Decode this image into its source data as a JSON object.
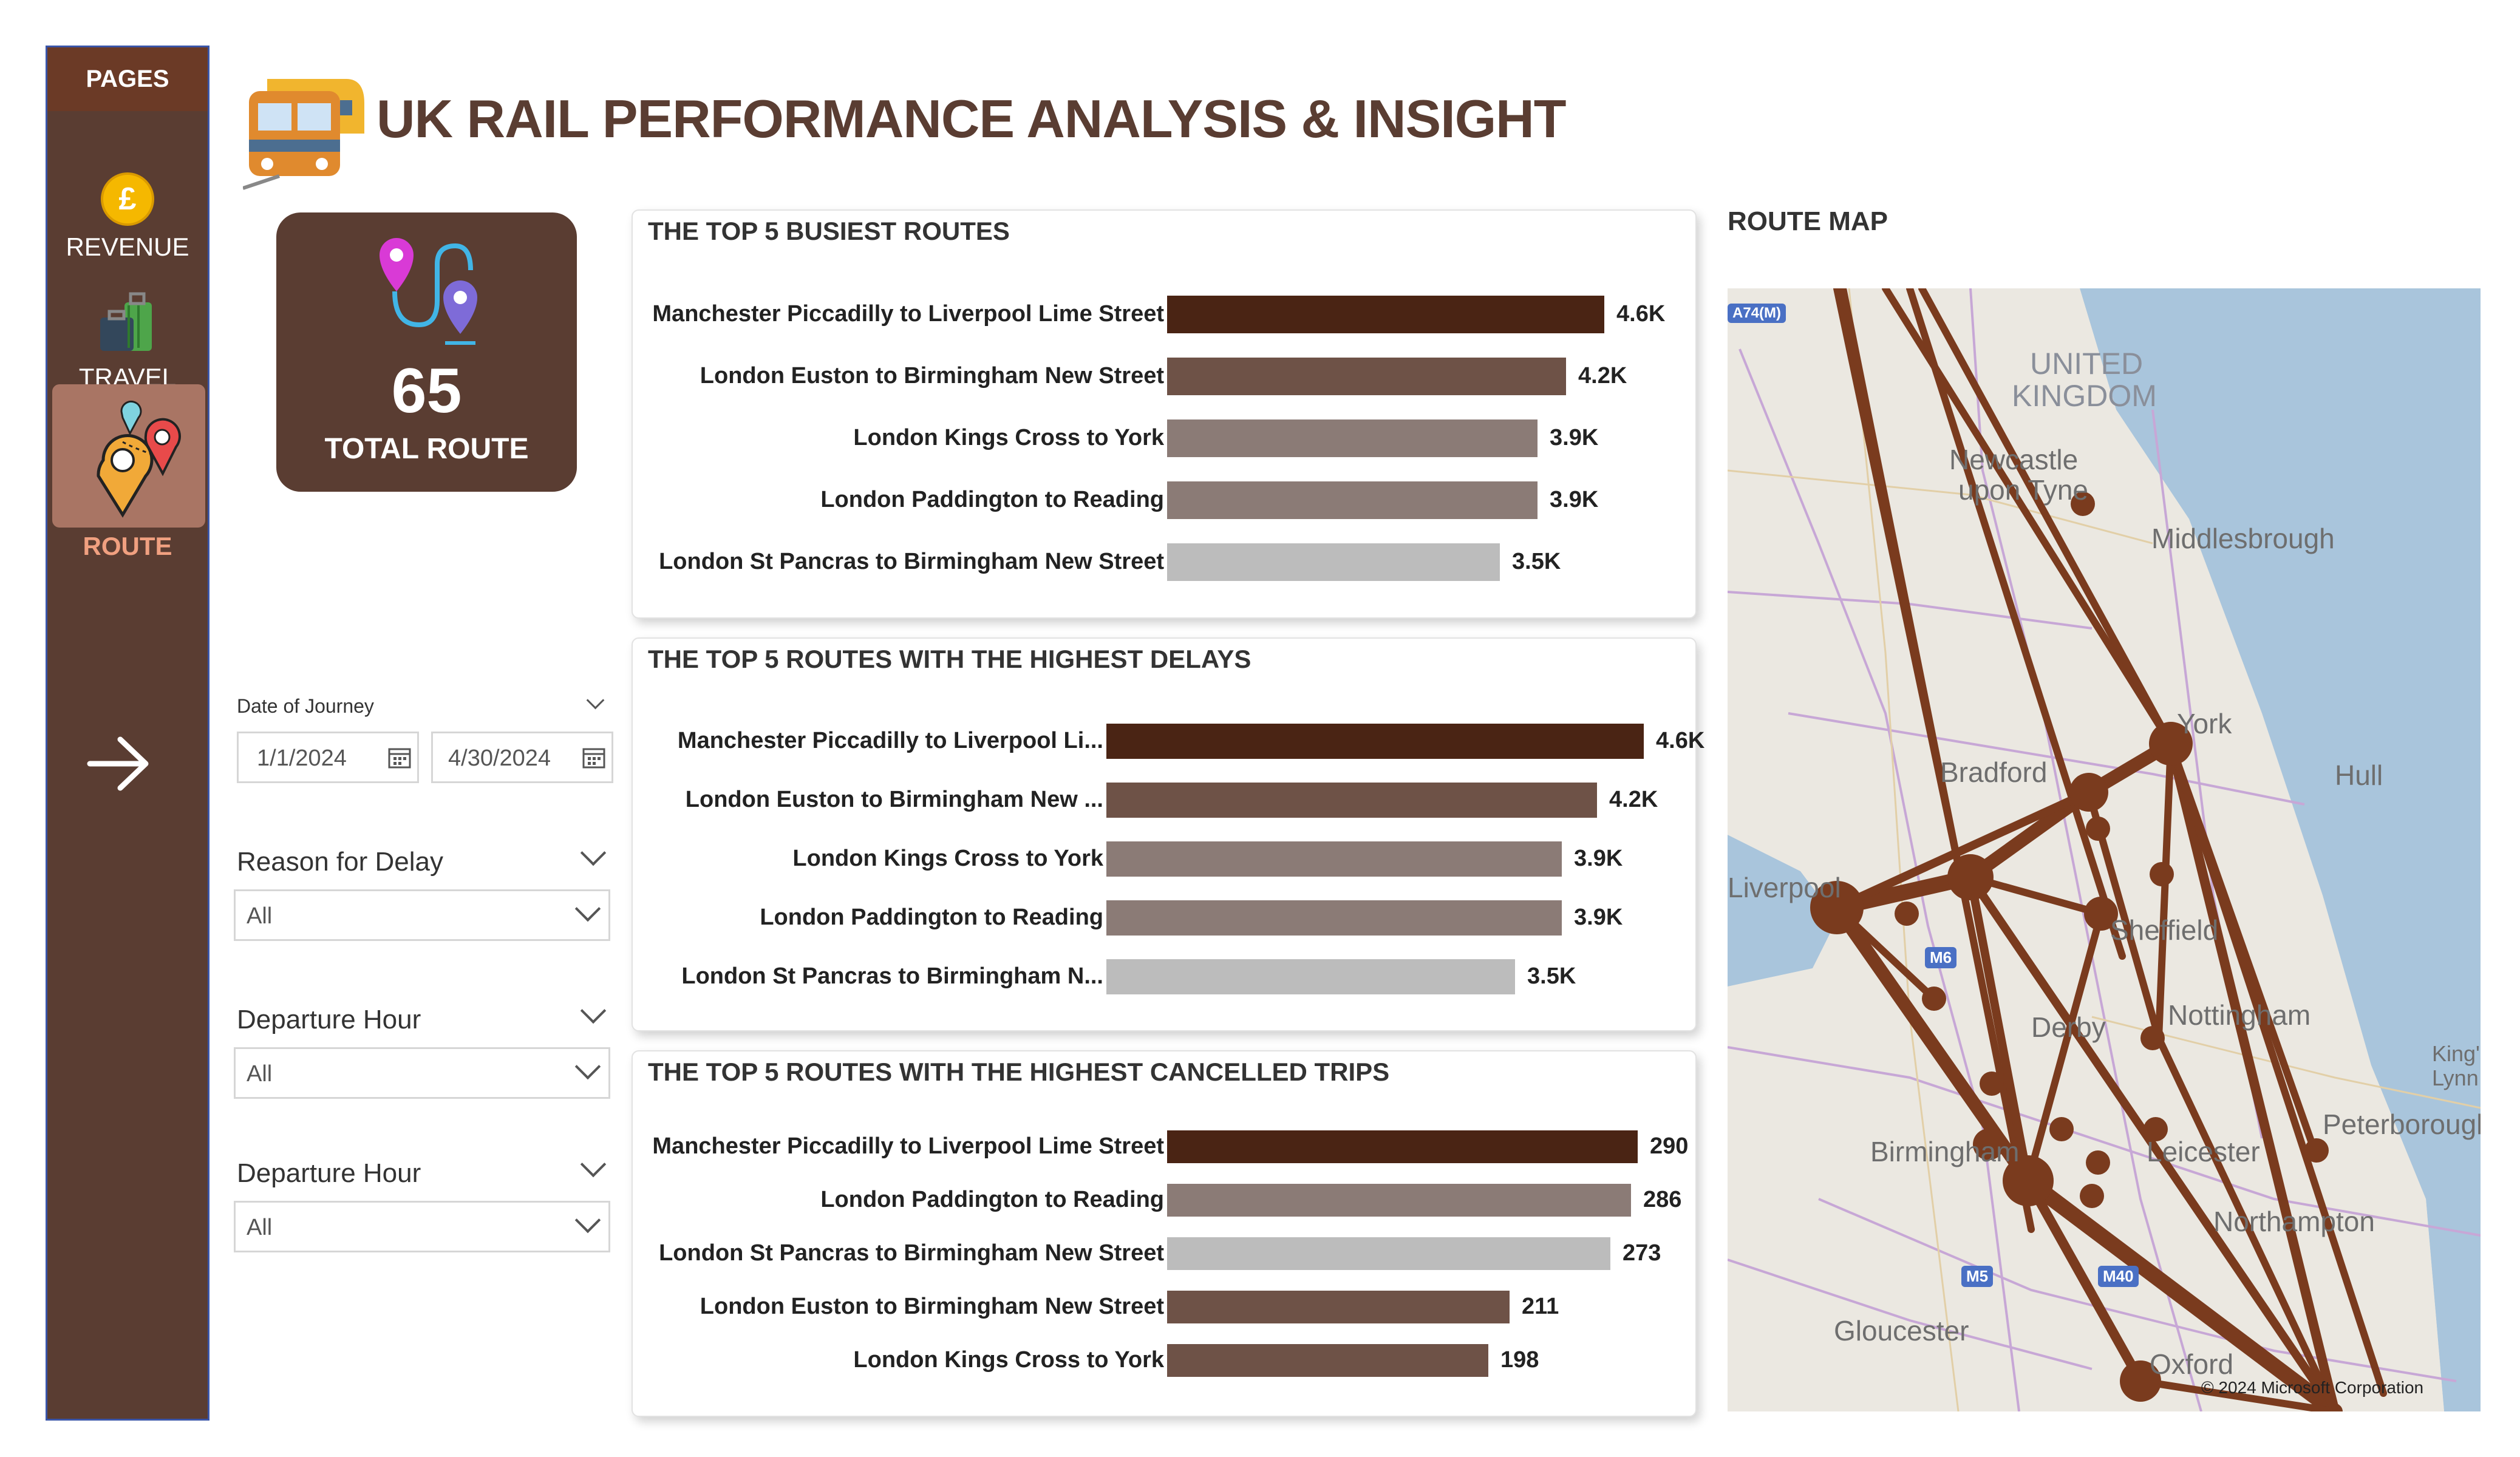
{
  "sidebar": {
    "header": "PAGES",
    "items": [
      {
        "label": "REVENUE",
        "icon": "pound-coin-icon"
      },
      {
        "label": "TRAVEL",
        "icon": "luggage-icon"
      },
      {
        "label": "ROUTE",
        "icon": "map-pins-icon",
        "active": true
      }
    ],
    "next_icon": "arrow-right-icon"
  },
  "header": {
    "title": "UK RAIL PERFORMANCE ANALYSIS & INSIGHT",
    "logo_icon": "train-icon"
  },
  "kpi": {
    "value": "65",
    "label": "TOTAL ROUTE",
    "icon": "route-pins-icon"
  },
  "filters": {
    "date": {
      "label": "Date of Journey",
      "start": "1/1/2024",
      "end": "4/30/2024"
    },
    "reason": {
      "label": "Reason for Delay",
      "value": "All"
    },
    "hour1": {
      "label": "Departure Hour",
      "value": "All"
    },
    "hour2": {
      "label": "Departure Hour",
      "value": "All"
    }
  },
  "colors": {
    "brown_dark": "#4a2414",
    "brown_mid": "#6e5247",
    "brown_light": "#8b7b76",
    "grey": "#bcbcbc",
    "sidebar": "#5a3d32"
  },
  "chart_data": [
    {
      "type": "bar",
      "title": "THE TOP 5 BUSIEST ROUTES",
      "categories": [
        "Manchester Piccadilly to Liverpool Lime Street",
        "London Euston to Birmingham New Street",
        "London Kings Cross to York",
        "London Paddington to Reading",
        "London St Pancras to Birmingham New Street"
      ],
      "values": [
        4600,
        4200,
        3900,
        3900,
        3500
      ],
      "value_labels": [
        "4.6K",
        "4.2K",
        "3.9K",
        "3.9K",
        "3.5K"
      ]
    },
    {
      "type": "bar",
      "title": "THE TOP 5 ROUTES WITH THE HIGHEST DELAYS",
      "categories": [
        "Manchester Piccadilly to Liverpool Li...",
        "London Euston to Birmingham New ...",
        "London Kings Cross to York",
        "London Paddington to Reading",
        "London St Pancras to Birmingham N..."
      ],
      "values": [
        4600,
        4200,
        3900,
        3900,
        3500
      ],
      "value_labels": [
        "4.6K",
        "4.2K",
        "3.9K",
        "3.9K",
        "3.5K"
      ]
    },
    {
      "type": "bar",
      "title": "THE TOP 5 ROUTES WITH THE HIGHEST CANCELLED TRIPS",
      "categories": [
        "Manchester Piccadilly to Liverpool Lime Street",
        "London Paddington to Reading",
        "London St Pancras to Birmingham New Street",
        "London Euston to Birmingham New Street",
        "London Kings Cross to York"
      ],
      "values": [
        290,
        286,
        273,
        211,
        198
      ],
      "value_labels": [
        "290",
        "286",
        "273",
        "211",
        "198"
      ]
    }
  ],
  "map": {
    "title": "ROUTE MAP",
    "places": [
      "UNITED",
      "KINGDOM",
      "Newcastle",
      "upon Tyne",
      "Middlesbrough",
      "York",
      "Hull",
      "Bradford",
      "Liverpool",
      "Sheffield",
      "Derby",
      "Nottingham",
      "King's",
      "Lynn",
      "Peterborough",
      "Birmingham",
      "Leicester",
      "Northampton",
      "Gloucester",
      "Oxford"
    ],
    "roads": [
      "A74(M)",
      "M6",
      "M5",
      "M40"
    ],
    "copyright": "© 2024 Microsoft Corporation"
  }
}
